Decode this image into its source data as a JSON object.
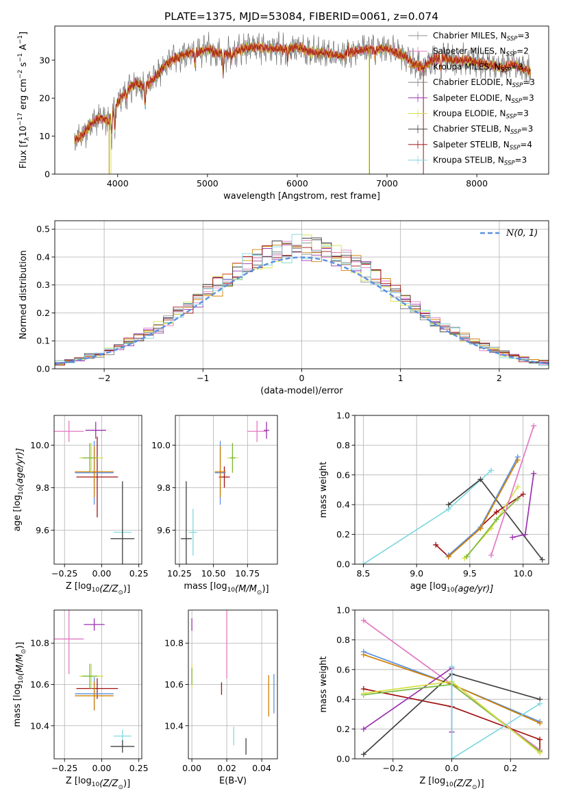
{
  "figure": {
    "title": "PLATE=1375, MJD=53084, FIBERID=0061, z=0.074"
  },
  "legend_series": [
    {
      "base": "Chabrier MILES, N",
      "sub": "SSP",
      "tail": "=3",
      "color": "#8c8c8c"
    },
    {
      "base": "Salpeter MILES, N",
      "sub": "SSP",
      "tail": "=2",
      "color": "#e377c2"
    },
    {
      "base": "Kroupa MILES, N",
      "sub": "SSP",
      "tail": "=3",
      "color": "#d08000"
    },
    {
      "base": "Chabrier ELODIE, N",
      "sub": "SSP",
      "tail": "=3",
      "color": "#7f7f7f"
    },
    {
      "base": "Salpeter ELODIE, N",
      "sub": "SSP",
      "tail": "=3",
      "color": "#9a30b0"
    },
    {
      "base": "Kroupa ELODIE, N",
      "sub": "SSP",
      "tail": "=3",
      "color": "#d4e040"
    },
    {
      "base": "Chabrier STELIB, N",
      "sub": "SSP",
      "tail": "=3",
      "color": "#404040"
    },
    {
      "base": "Salpeter STELIB, N",
      "sub": "SSP",
      "tail": "=4",
      "color": "#a01010"
    },
    {
      "base": "Kroupa STELIB, N",
      "sub": "SSP",
      "tail": "=3",
      "color": "#80d8e0"
    }
  ],
  "chart_data": [
    {
      "id": "spectrum",
      "type": "line",
      "xlabel": "wavelength [Angstrom, rest frame]",
      "ylabel": "Flux [f",
      "xlim": [
        3300,
        8800
      ],
      "ylim": [
        0,
        39
      ],
      "xticks": [
        4000,
        5000,
        6000,
        7000,
        8000
      ],
      "yticks": [
        0,
        10,
        20,
        30
      ],
      "grid": false,
      "legend_position": "top-right",
      "continuum": [
        [
          3520,
          9
        ],
        [
          3600,
          10
        ],
        [
          3700,
          13
        ],
        [
          3800,
          15
        ],
        [
          3900,
          14
        ],
        [
          4000,
          19
        ],
        [
          4100,
          22
        ],
        [
          4200,
          24
        ],
        [
          4300,
          23
        ],
        [
          4400,
          25
        ],
        [
          4500,
          28
        ],
        [
          4600,
          30
        ],
        [
          4700,
          31
        ],
        [
          4800,
          32
        ],
        [
          4900,
          32
        ],
        [
          5000,
          33
        ],
        [
          5100,
          32
        ],
        [
          5200,
          31.5
        ],
        [
          5300,
          32
        ],
        [
          5400,
          33
        ],
        [
          5500,
          33.5
        ],
        [
          5600,
          33.5
        ],
        [
          5700,
          33
        ],
        [
          5800,
          33
        ],
        [
          5900,
          33
        ],
        [
          6000,
          33.5
        ],
        [
          6100,
          32.5
        ],
        [
          6200,
          32
        ],
        [
          6300,
          32
        ],
        [
          6400,
          31.5
        ],
        [
          6500,
          31
        ],
        [
          6600,
          32
        ],
        [
          6700,
          32.5
        ],
        [
          6800,
          33
        ],
        [
          6900,
          33
        ],
        [
          7000,
          33
        ],
        [
          7100,
          32
        ],
        [
          7200,
          31
        ],
        [
          7300,
          29
        ],
        [
          7400,
          28
        ],
        [
          7500,
          30
        ],
        [
          7600,
          31
        ],
        [
          7700,
          30
        ],
        [
          7800,
          30
        ],
        [
          7900,
          30
        ],
        [
          8000,
          29.5
        ],
        [
          8100,
          29
        ],
        [
          8200,
          28.5
        ],
        [
          8300,
          28
        ],
        [
          8400,
          29
        ],
        [
          8500,
          28
        ],
        [
          8600,
          27
        ]
      ],
      "absorption_features": [
        [
          3934,
          5
        ],
        [
          3969,
          6
        ],
        [
          4102,
          2
        ],
        [
          4305,
          5
        ],
        [
          4861,
          3
        ],
        [
          5175,
          5
        ],
        [
          5270,
          2
        ],
        [
          5893,
          3
        ],
        [
          6563,
          -2
        ],
        [
          6867,
          2
        ],
        [
          7600,
          4
        ]
      ],
      "dropouts": [
        {
          "x": 3905,
          "color": "#d08000"
        },
        {
          "x": 3925,
          "color": "#d4e040"
        },
        {
          "x": 6800,
          "color": "#d4e040"
        },
        {
          "x": 6805,
          "color": "#d08000"
        },
        {
          "x": 7405,
          "color": "#a01010"
        }
      ]
    },
    {
      "id": "residuals",
      "type": "histogram",
      "xlabel": "(data-model)/error",
      "ylabel": "Normed distribution",
      "xlim": [
        -2.5,
        2.5
      ],
      "ylim": [
        0,
        0.53
      ],
      "xticks": [
        -2,
        -1,
        0,
        1,
        2
      ],
      "yticks": [
        0.0,
        0.1,
        0.2,
        0.3,
        0.4,
        0.5
      ],
      "grid": true,
      "bin_width": 0.1,
      "legend_position": "top-right",
      "legend_label": "(0, 1)",
      "legend_symbol": "N",
      "reference_curve": "normal",
      "reference_color": "#5b8fe0",
      "reference_mean": 0,
      "reference_sigma": 1
    },
    {
      "id": "age_vs_Z",
      "type": "scatter",
      "xlabel": "Z [log",
      "xlabel_sub": "10",
      "xlabel_tail": "(Z/Z",
      "xlabel_end": ")]",
      "ylabel": "age  [log",
      "ylabel_sub": "10",
      "ylabel_tail": "(age/yr)]",
      "xlim": [
        -0.32,
        0.27
      ],
      "ylim": [
        9.44,
        10.14
      ],
      "xticks": [
        -0.25,
        0.0,
        0.25
      ],
      "yticks": [
        9.6,
        9.8,
        10.0
      ],
      "grid": true,
      "points": [
        {
          "x": 0.14,
          "y": 9.59,
          "xerr": 0.06,
          "yerr": 0.02,
          "color": "#80d8e0"
        },
        {
          "x": 0.14,
          "y": 9.56,
          "xerr": 0.08,
          "yerr": 0.27,
          "color": "#404040"
        },
        {
          "x": -0.03,
          "y": 9.85,
          "xerr": 0.14,
          "yerr": 0.19,
          "color": "#a01010"
        },
        {
          "x": -0.05,
          "y": 9.87,
          "xerr": 0.13,
          "yerr": 0.15,
          "color": "#5b8fe0"
        },
        {
          "x": -0.05,
          "y": 9.875,
          "xerr": 0.13,
          "yerr": 0.12,
          "color": "#d08000"
        },
        {
          "x": -0.07,
          "y": 9.94,
          "xerr": 0.08,
          "yerr": 0.07,
          "color": "#d4e040"
        },
        {
          "x": -0.08,
          "y": 9.94,
          "xerr": 0.05,
          "yerr": 0.07,
          "color": "#7ab83c"
        },
        {
          "x": -0.22,
          "y": 10.065,
          "xerr": 0.1,
          "yerr": 0.05,
          "color": "#e377c2"
        },
        {
          "x": -0.04,
          "y": 10.07,
          "xerr": 0.07,
          "yerr": 0.04,
          "color": "#9a30b0"
        }
      ]
    },
    {
      "id": "age_vs_mass",
      "type": "scatter",
      "xlabel": "mass [log",
      "xlabel_sub": "10",
      "xlabel_tail": "(M/M",
      "xlabel_end": ")]",
      "ylabel": "",
      "xlim": [
        10.22,
        10.97
      ],
      "ylim": [
        9.44,
        10.14
      ],
      "xticks": [
        10.25,
        10.5,
        10.75
      ],
      "yticks": [
        9.6,
        9.8,
        10.0
      ],
      "grid": true,
      "points": [
        {
          "x": 10.35,
          "y": 9.59,
          "xerr": 0.03,
          "yerr": 0.11,
          "color": "#80d8e0"
        },
        {
          "x": 10.3,
          "y": 9.56,
          "xerr": 0.04,
          "yerr": 0.27,
          "color": "#404040"
        },
        {
          "x": 10.58,
          "y": 9.85,
          "xerr": 0.04,
          "yerr": 0.05,
          "color": "#a01010"
        },
        {
          "x": 10.55,
          "y": 9.87,
          "xerr": 0.04,
          "yerr": 0.15,
          "color": "#5b8fe0"
        },
        {
          "x": 10.55,
          "y": 9.875,
          "xerr": 0.04,
          "yerr": 0.12,
          "color": "#d08000"
        },
        {
          "x": 10.64,
          "y": 9.94,
          "xerr": 0.04,
          "yerr": 0.07,
          "color": "#d4e040"
        },
        {
          "x": 10.64,
          "y": 9.94,
          "xerr": 0.02,
          "yerr": 0.07,
          "color": "#7ab83c"
        },
        {
          "x": 10.82,
          "y": 10.065,
          "xerr": 0.07,
          "yerr": 0.05,
          "color": "#e377c2"
        },
        {
          "x": 10.89,
          "y": 10.07,
          "xerr": 0.02,
          "yerr": 0.04,
          "color": "#9a30b0"
        }
      ]
    },
    {
      "id": "weight_vs_age",
      "type": "line",
      "xlabel": "age  [log",
      "xlabel_sub": "10",
      "xlabel_tail": "(age/yr)]",
      "ylabel": "mass weight",
      "xlim": [
        8.42,
        10.24
      ],
      "ylim": [
        0,
        1.0
      ],
      "xticks": [
        8.5,
        9.0,
        9.5,
        10.0
      ],
      "yticks": [
        0.0,
        0.2,
        0.4,
        0.6,
        0.8,
        1.0
      ],
      "grid": true,
      "series": [
        {
          "color": "#80d8e0",
          "x": [
            8.5,
            9.3,
            9.7
          ],
          "y": [
            0.0,
            0.37,
            0.63
          ]
        },
        {
          "color": "#404040",
          "x": [
            9.3,
            9.6,
            10.18
          ],
          "y": [
            0.4,
            0.57,
            0.03
          ]
        },
        {
          "color": "#a01010",
          "x": [
            9.18,
            9.3,
            9.75,
            10.0
          ],
          "y": [
            0.13,
            0.05,
            0.35,
            0.47
          ]
        },
        {
          "color": "#5b8fe0",
          "x": [
            9.3,
            9.6,
            9.95
          ],
          "y": [
            0.06,
            0.25,
            0.72
          ]
        },
        {
          "color": "#d08000",
          "x": [
            9.3,
            9.6,
            9.95
          ],
          "y": [
            0.05,
            0.24,
            0.7
          ]
        },
        {
          "color": "#d4e040",
          "x": [
            9.45,
            9.7,
            9.95
          ],
          "y": [
            0.04,
            0.24,
            0.52
          ]
        },
        {
          "color": "#7ab83c",
          "x": [
            9.47,
            9.75,
            9.95
          ],
          "y": [
            0.05,
            0.3,
            0.44
          ]
        },
        {
          "color": "#e377c2",
          "x": [
            9.7,
            10.1
          ],
          "y": [
            0.06,
            0.93
          ]
        },
        {
          "color": "#9a30b0",
          "x": [
            9.9,
            10.02,
            10.1
          ],
          "y": [
            0.18,
            0.2,
            0.61
          ]
        }
      ]
    },
    {
      "id": "mass_vs_Z",
      "type": "scatter",
      "xlabel": "Z [log",
      "xlabel_sub": "10",
      "xlabel_tail": "(Z/Z",
      "xlabel_end": ")]",
      "ylabel": "mass [log",
      "ylabel_sub": "10",
      "ylabel_tail": "(M/M",
      "ylabel_end": ")]",
      "xlim": [
        -0.32,
        0.27
      ],
      "ylim": [
        10.24,
        10.96
      ],
      "xticks": [
        -0.25,
        0.0,
        0.25
      ],
      "yticks": [
        10.4,
        10.6,
        10.8
      ],
      "grid": true,
      "points": [
        {
          "x": 0.14,
          "y": 10.35,
          "xerr": 0.06,
          "yerr": 0.03,
          "color": "#80d8e0"
        },
        {
          "x": 0.14,
          "y": 10.3,
          "xerr": 0.08,
          "yerr": 0.03,
          "color": "#404040"
        },
        {
          "x": -0.03,
          "y": 10.58,
          "xerr": 0.14,
          "yerr": 0.05,
          "color": "#a01010"
        },
        {
          "x": -0.05,
          "y": 10.555,
          "xerr": 0.13,
          "yerr": 0.08,
          "color": "#5b8fe0"
        },
        {
          "x": -0.05,
          "y": 10.545,
          "xerr": 0.13,
          "yerr": 0.07,
          "color": "#d08000"
        },
        {
          "x": -0.07,
          "y": 10.64,
          "xerr": 0.08,
          "yerr": 0.06,
          "color": "#d4e040"
        },
        {
          "x": -0.08,
          "y": 10.64,
          "xerr": 0.05,
          "yerr": 0.06,
          "color": "#7ab83c"
        },
        {
          "x": -0.22,
          "y": 10.82,
          "xerr": 0.1,
          "yerr": 0.17,
          "color": "#e377c2"
        },
        {
          "x": -0.05,
          "y": 10.89,
          "xerr": 0.07,
          "yerr": 0.03,
          "color": "#9a30b0"
        }
      ]
    },
    {
      "id": "mass_vs_ebv",
      "type": "scatter",
      "xlabel": "E(B-V)",
      "ylabel": "",
      "xlim": [
        -0.002,
        0.049
      ],
      "ylim": [
        10.24,
        10.96
      ],
      "xticks": [
        0.0,
        0.02,
        0.04
      ],
      "yticks": [
        10.4,
        10.6,
        10.8
      ],
      "grid": true,
      "points": [
        {
          "x": 0.024,
          "y": 10.35,
          "xerr": 0,
          "yerr": 0.045,
          "color": "#80d8e0"
        },
        {
          "x": 0.031,
          "y": 10.3,
          "xerr": 0,
          "yerr": 0.04,
          "color": "#404040"
        },
        {
          "x": 0.017,
          "y": 10.58,
          "xerr": 0,
          "yerr": 0.03,
          "color": "#a01010"
        },
        {
          "x": 0.047,
          "y": 10.555,
          "xerr": 0,
          "yerr": 0.095,
          "color": "#5b8fe0"
        },
        {
          "x": 0.044,
          "y": 10.545,
          "xerr": 0,
          "yerr": 0.1,
          "color": "#d08000"
        },
        {
          "x": 0.0,
          "y": 10.64,
          "xerr": 0,
          "yerr": 0.06,
          "color": "#d4e040"
        },
        {
          "x": 0.0,
          "y": 10.64,
          "xerr": 0,
          "yerr": 0.04,
          "color": "#7ab83c"
        },
        {
          "x": 0.02,
          "y": 10.8,
          "xerr": 0,
          "yerr": 0.17,
          "color": "#e377c2"
        },
        {
          "x": 0.0,
          "y": 10.89,
          "xerr": 0,
          "yerr": 0.03,
          "color": "#9a30b0"
        }
      ]
    },
    {
      "id": "weight_vs_Z",
      "type": "line",
      "xlabel": "Z [log",
      "xlabel_sub": "10",
      "xlabel_tail": "(Z/Z",
      "xlabel_end": ")]",
      "ylabel": "mass weight",
      "xlim": [
        -0.33,
        0.33
      ],
      "ylim": [
        0,
        1.0
      ],
      "xticks": [
        -0.2,
        0.0,
        0.2
      ],
      "yticks": [
        0.0,
        0.2,
        0.4,
        0.6,
        0.8,
        1.0
      ],
      "grid": true,
      "series": [
        {
          "color": "#e377c2",
          "x": [
            -0.3,
            0.0,
            0.3
          ],
          "y": [
            0.93,
            0.5,
            0.06
          ]
        },
        {
          "color": "#5b8fe0",
          "x": [
            -0.3,
            0.0,
            0.3
          ],
          "y": [
            0.72,
            0.5,
            0.25
          ]
        },
        {
          "color": "#d08000",
          "x": [
            -0.3,
            0.0,
            0.3
          ],
          "y": [
            0.7,
            0.5,
            0.24
          ]
        },
        {
          "color": "#a01010",
          "x": [
            -0.3,
            0.0,
            0.3,
            0.3
          ],
          "y": [
            0.47,
            0.35,
            0.13,
            0.05
          ]
        },
        {
          "color": "#404040",
          "x": [
            -0.3,
            0.0,
            0.3
          ],
          "y": [
            0.03,
            0.57,
            0.4
          ]
        },
        {
          "color": "#9a30b0",
          "x": [
            -0.3,
            0.0,
            0.0
          ],
          "y": [
            0.2,
            0.61,
            0.18
          ]
        },
        {
          "color": "#7ab83c",
          "x": [
            -0.3,
            0.0,
            0.3
          ],
          "y": [
            0.43,
            0.5,
            0.05
          ]
        },
        {
          "color": "#d4e040",
          "x": [
            -0.3,
            0.0,
            0.3
          ],
          "y": [
            0.44,
            0.52,
            0.04
          ]
        },
        {
          "color": "#80d8e0",
          "x": [
            0.0,
            0.0,
            0.3
          ],
          "y": [
            0.62,
            0.0,
            0.37
          ]
        }
      ]
    }
  ]
}
